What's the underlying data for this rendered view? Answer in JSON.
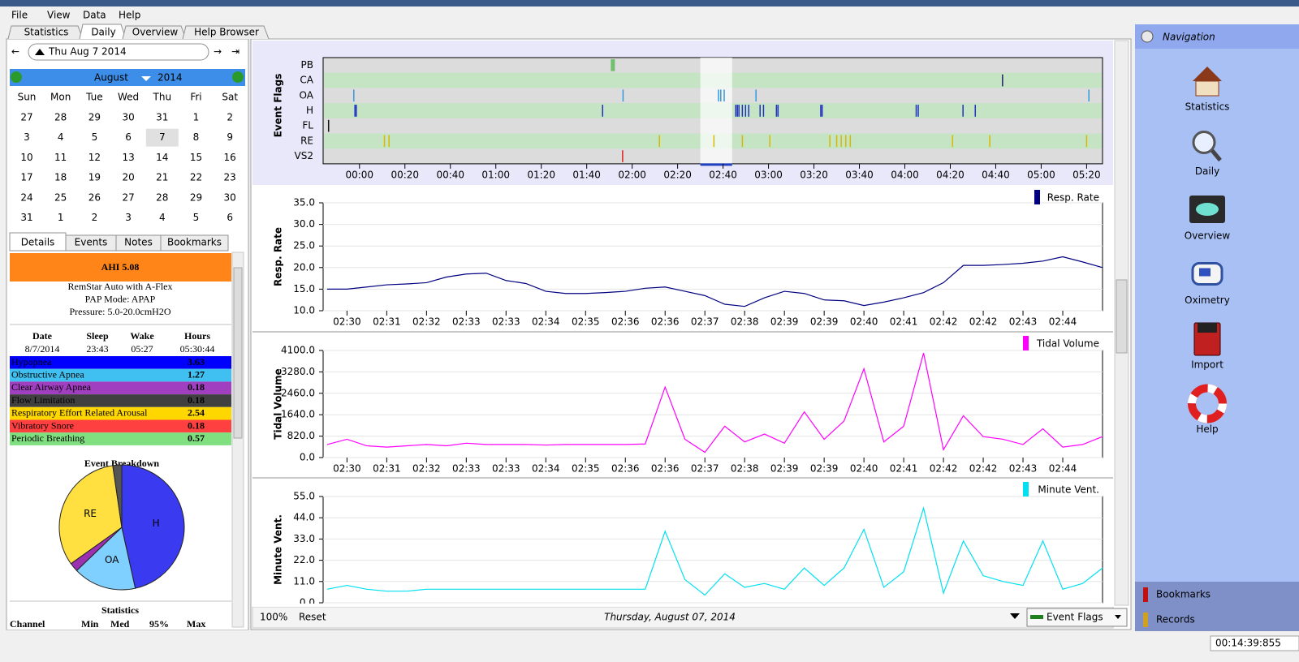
{
  "menu": [
    "File",
    "View",
    "Data",
    "Help"
  ],
  "tabs": [
    "Statistics",
    "Daily",
    "Overview",
    "Help Browser"
  ],
  "active_tab": 1,
  "date_box": "Thu Aug 7 2014",
  "calendar": {
    "month": "August",
    "year": "2014",
    "weekdays": [
      "Sun",
      "Mon",
      "Tue",
      "Wed",
      "Thu",
      "Fri",
      "Sat"
    ],
    "days": [
      27,
      28,
      29,
      30,
      31,
      1,
      2,
      3,
      4,
      5,
      6,
      7,
      8,
      9,
      10,
      11,
      12,
      13,
      14,
      15,
      16,
      17,
      18,
      19,
      20,
      21,
      22,
      23,
      24,
      25,
      26,
      27,
      28,
      29,
      30,
      31,
      1,
      2,
      3,
      4,
      5,
      6
    ],
    "highlighted_days": [
      1,
      2,
      3,
      4,
      5,
      6
    ],
    "selected_day": 7
  },
  "subtabs": [
    "Details",
    "Events",
    "Notes",
    "Bookmarks"
  ],
  "active_subtab": 0,
  "details": {
    "ahi": "AHI 5.08",
    "machine": "RemStar Auto with A-Flex",
    "mode": "PAP Mode: APAP",
    "pressure": "Pressure: 5.0-20.0cmH2O",
    "summary_headers": [
      "Date",
      "Sleep",
      "Wake",
      "Hours"
    ],
    "summary_values": [
      "8/7/2014",
      "23:43",
      "05:27",
      "05:30:44"
    ],
    "indices": [
      {
        "name": "Hypopnea",
        "value": 3.63,
        "color": "#0000ff"
      },
      {
        "name": "Obstructive Apnea",
        "value": 1.27,
        "color": "#40c0f0"
      },
      {
        "name": "Clear Airway Apnea",
        "value": 0.18,
        "color": "#a040c0"
      },
      {
        "name": "Flow Limitation",
        "value": 0.18,
        "color": "#404040"
      },
      {
        "name": "Respiratory Effort Related Arousal",
        "value": 2.54,
        "color": "#ffd700"
      },
      {
        "name": "Vibratory Snore",
        "value": 0.18,
        "color": "#ff4040"
      },
      {
        "name": "Periodic Breathing",
        "value": 0.57,
        "color": "#80e080"
      }
    ]
  },
  "pie": {
    "type": "pie",
    "title": "Event Breakdown",
    "labels": [
      "H",
      "OA",
      null,
      "RE",
      null
    ],
    "values": [
      3.63,
      1.27,
      0.18,
      2.54,
      0.18
    ],
    "colors": [
      "#3a3af0",
      "#7fd0ff",
      "#9b30b0",
      "#ffe040",
      "#555555"
    ]
  },
  "statistics": {
    "title": "Statistics",
    "headers": [
      "Channel",
      "Min",
      "Med",
      "95%",
      "Max"
    ]
  },
  "event_flags": {
    "type": "event",
    "title": "Event Flags",
    "xlim": [
      -16,
      327
    ],
    "highlight": [
      150,
      164
    ],
    "xticks": [
      {
        "value": 0,
        "label": "00:00"
      },
      {
        "value": 20,
        "label": "00:20"
      },
      {
        "value": 40,
        "label": "00:40"
      },
      {
        "value": 60,
        "label": "01:00"
      },
      {
        "value": 80,
        "label": "01:20"
      },
      {
        "value": 100,
        "label": "01:40"
      },
      {
        "value": 120,
        "label": "02:00"
      },
      {
        "value": 140,
        "label": "02:20"
      },
      {
        "value": 160,
        "label": "02:40"
      },
      {
        "value": 180,
        "label": "03:00"
      },
      {
        "value": 200,
        "label": "03:20"
      },
      {
        "value": 220,
        "label": "03:40"
      },
      {
        "value": 240,
        "label": "04:00"
      },
      {
        "value": 260,
        "label": "04:20"
      },
      {
        "value": 280,
        "label": "04:40"
      },
      {
        "value": 300,
        "label": "05:00"
      },
      {
        "value": 320,
        "label": "05:20"
      }
    ],
    "rows": [
      {
        "name": "PB",
        "color": "#70c070",
        "events": [
          111.5
        ]
      },
      {
        "name": "CA",
        "color": "#202060",
        "events": [
          283
        ]
      },
      {
        "name": "OA",
        "color": "#3399dd",
        "events": [
          -2.5,
          116,
          158,
          159,
          160.5,
          174.5,
          321
        ]
      },
      {
        "name": "H",
        "color": "#2030c0",
        "events": [
          -2,
          -1.4,
          107,
          165.6,
          166.3,
          167,
          168.5,
          169.9,
          171.3,
          176.3,
          177.8,
          183.5,
          184.2,
          203,
          203.6,
          245,
          245.9,
          265.6,
          271
        ]
      },
      {
        "name": "FL",
        "color": "#101010",
        "events": [
          -13.6
        ]
      },
      {
        "name": "RE",
        "color": "#d8b800",
        "events": [
          11,
          13,
          132,
          156,
          168.5,
          180.6,
          207,
          210,
          212,
          214,
          216,
          261,
          277.4,
          320
        ]
      },
      {
        "name": "VS2",
        "color": "#e02020",
        "events": [
          115.8
        ]
      }
    ]
  },
  "charts": [
    {
      "type": "line",
      "title": "Resp. Rate",
      "color": "#000080",
      "x": [
        -0.5,
        0,
        0.5,
        1,
        1.5,
        2,
        2.5,
        3,
        3.5,
        4,
        4.5,
        5,
        5.5,
        6,
        6.5,
        7,
        7.5,
        8,
        8.5,
        9,
        9.5,
        10,
        10.5,
        11,
        11.5,
        12,
        12.5,
        13,
        13.5,
        14,
        14.5,
        15,
        15.5,
        16,
        16.5,
        17,
        17.5,
        18,
        18.5,
        19
      ],
      "values": [
        15,
        15,
        15.5,
        16,
        16.2,
        16.5,
        17.8,
        18.5,
        18.7,
        17,
        16.3,
        14.5,
        14,
        14,
        14.2,
        14.5,
        15.2,
        15.5,
        14.5,
        13.5,
        11.5,
        11,
        13,
        14.5,
        14,
        12.5,
        12.3,
        11.2,
        12,
        13,
        14.2,
        16.5,
        20.5,
        20.5,
        20.7,
        21,
        21.5,
        22.5,
        21.3,
        20
      ],
      "xlim": [
        -0.6,
        19.0
      ],
      "ylim": [
        10,
        35
      ],
      "yticks": [
        {
          "value": 10,
          "label": "10.0"
        },
        {
          "value": 15,
          "label": "15.0"
        },
        {
          "value": 20,
          "label": "20.0"
        },
        {
          "value": 25,
          "label": "25.0"
        },
        {
          "value": 30,
          "label": "30.0"
        },
        {
          "value": 35,
          "label": "35.0"
        }
      ],
      "xticks": [
        {
          "value": 0,
          "label": "02:30"
        },
        {
          "value": 1,
          "label": "02:31"
        },
        {
          "value": 2,
          "label": "02:32"
        },
        {
          "value": 3,
          "label": "02:33"
        },
        {
          "value": 4,
          "label": "02:33"
        },
        {
          "value": 5,
          "label": "02:34"
        },
        {
          "value": 6,
          "label": "02:35"
        },
        {
          "value": 7,
          "label": "02:36"
        },
        {
          "value": 8,
          "label": "02:36"
        },
        {
          "value": 9,
          "label": "02:37"
        },
        {
          "value": 10,
          "label": "02:38"
        },
        {
          "value": 11,
          "label": "02:39"
        },
        {
          "value": 12,
          "label": "02:39"
        },
        {
          "value": 13,
          "label": "02:40"
        },
        {
          "value": 14,
          "label": "02:41"
        },
        {
          "value": 15,
          "label": "02:42"
        },
        {
          "value": 16,
          "label": "02:42"
        },
        {
          "value": 17,
          "label": "02:43"
        },
        {
          "value": 18,
          "label": "02:44"
        }
      ],
      "grid": true
    },
    {
      "type": "line",
      "title": "Tidal Volume",
      "color": "#ff00ff",
      "x": [
        -0.5,
        0,
        0.5,
        1,
        1.5,
        2,
        2.5,
        3,
        3.5,
        4,
        4.5,
        5,
        5.5,
        6,
        6.5,
        7,
        7.5,
        8,
        8.5,
        9,
        9.5,
        10,
        10.5,
        11,
        11.5,
        12,
        12.5,
        13,
        13.5,
        14,
        14.5,
        15,
        15.5,
        16,
        16.5,
        17,
        17.5,
        18,
        18.5,
        19
      ],
      "values": [
        500,
        700,
        450,
        400,
        450,
        500,
        450,
        550,
        500,
        500,
        500,
        480,
        500,
        500,
        500,
        500,
        520,
        2700,
        700,
        200,
        1200,
        600,
        900,
        550,
        1750,
        700,
        1400,
        3400,
        600,
        1200,
        4000,
        300,
        1600,
        800,
        700,
        500,
        1100,
        400,
        500,
        800
      ],
      "xlim": [
        -0.6,
        19.0
      ],
      "ylim": [
        0,
        4100
      ],
      "yticks": [
        {
          "value": 0,
          "label": "0.0"
        },
        {
          "value": 820,
          "label": "820.0"
        },
        {
          "value": 1640,
          "label": "1640.0"
        },
        {
          "value": 2460,
          "label": "2460.0"
        },
        {
          "value": 3280,
          "label": "3280.0"
        },
        {
          "value": 4100,
          "label": "4100.0"
        }
      ],
      "xticks": [
        {
          "value": 0,
          "label": "02:30"
        },
        {
          "value": 1,
          "label": "02:31"
        },
        {
          "value": 2,
          "label": "02:32"
        },
        {
          "value": 3,
          "label": "02:33"
        },
        {
          "value": 4,
          "label": "02:33"
        },
        {
          "value": 5,
          "label": "02:34"
        },
        {
          "value": 6,
          "label": "02:35"
        },
        {
          "value": 7,
          "label": "02:36"
        },
        {
          "value": 8,
          "label": "02:36"
        },
        {
          "value": 9,
          "label": "02:37"
        },
        {
          "value": 10,
          "label": "02:38"
        },
        {
          "value": 11,
          "label": "02:39"
        },
        {
          "value": 12,
          "label": "02:39"
        },
        {
          "value": 13,
          "label": "02:40"
        },
        {
          "value": 14,
          "label": "02:41"
        },
        {
          "value": 15,
          "label": "02:42"
        },
        {
          "value": 16,
          "label": "02:42"
        },
        {
          "value": 17,
          "label": "02:43"
        },
        {
          "value": 18,
          "label": "02:44"
        }
      ],
      "grid": true
    },
    {
      "type": "line",
      "title": "Minute Vent.",
      "color": "#00e0f0",
      "x": [
        -0.5,
        0,
        0.5,
        1,
        1.5,
        2,
        2.5,
        3,
        3.5,
        4,
        4.5,
        5,
        5.5,
        6,
        6.5,
        7,
        7.5,
        8,
        8.5,
        9,
        9.5,
        10,
        10.5,
        11,
        11.5,
        12,
        12.5,
        13,
        13.5,
        14,
        14.5,
        15,
        15.5,
        16,
        16.5,
        17,
        17.5,
        18,
        18.5,
        19
      ],
      "values": [
        7,
        9,
        7,
        6,
        6,
        7,
        7,
        7,
        7,
        7,
        7,
        7,
        7,
        7,
        7,
        7,
        7,
        37,
        12,
        4,
        15,
        8,
        10,
        7,
        18,
        9,
        18,
        38,
        8,
        16,
        49,
        5,
        32,
        14,
        11,
        9,
        32,
        7,
        10,
        18
      ],
      "xlim": [
        -0.6,
        19.0
      ],
      "ylim": [
        0,
        55
      ],
      "yticks": [
        {
          "value": 0,
          "label": "0.0"
        },
        {
          "value": 11,
          "label": "11.0"
        },
        {
          "value": 22,
          "label": "22.0"
        },
        {
          "value": 33,
          "label": "33.0"
        },
        {
          "value": 44,
          "label": "44.0"
        },
        {
          "value": 55,
          "label": "55.0"
        }
      ],
      "grid": true
    }
  ],
  "toolbar": {
    "zoom": "100%",
    "reset": "Reset",
    "date": "Thursday, August 07, 2014",
    "dropdown": "Event Flags"
  },
  "navigation": {
    "title": "Navigation",
    "items": [
      "Statistics",
      "Daily",
      "Overview",
      "Oximetry",
      "Import",
      "Help"
    ],
    "bottom": [
      "Bookmarks",
      "Records"
    ]
  },
  "clock": "00:14:39:855"
}
